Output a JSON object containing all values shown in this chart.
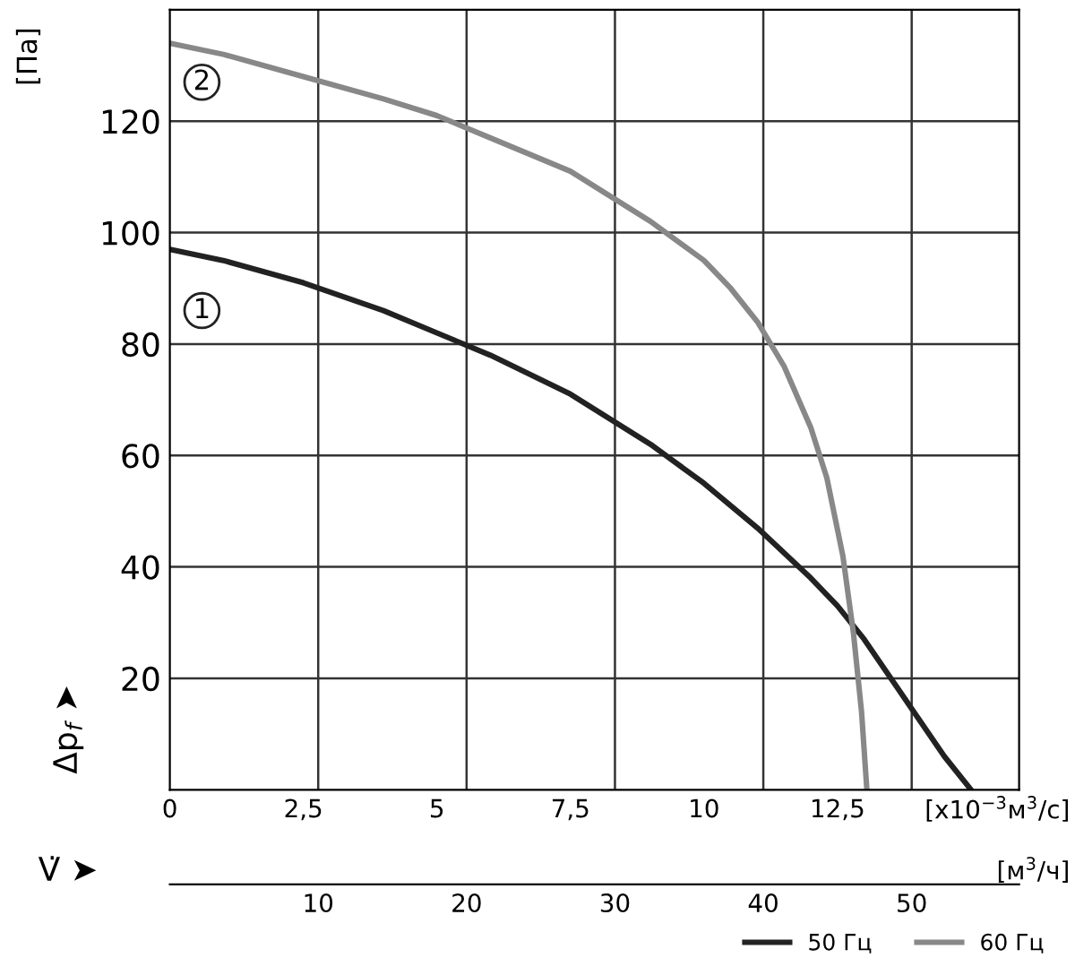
{
  "chart_data": {
    "type": "line",
    "xlabel": "[x10$^{−3}$м$^{3}$/с]",
    "ylabel": "[Па]",
    "x2label": "[м$^{3}$/ч]",
    "annotations": [
      "Δp$_{f}$ ➤",
      "V̇ ➤",
      {
        "text": "1",
        "x": 0.6,
        "y": 86
      },
      {
        "text": "2",
        "x": 0.6,
        "y": 127
      }
    ],
    "xlim": [
      0,
      15.9
    ],
    "ylim": [
      0,
      140
    ],
    "xticks": [
      0,
      {
        "value": 2.5,
        "label": "2,5"
      },
      5,
      {
        "value": 7.5,
        "label": "7,5"
      },
      10,
      {
        "value": 12.5,
        "label": "12,5"
      }
    ],
    "x2lim": [
      0,
      57.24
    ],
    "x2ticks": [
      10,
      20,
      30,
      40,
      50
    ],
    "yticks": [
      20,
      40,
      60,
      80,
      100,
      120
    ],
    "grid": true,
    "legend": "bottom right",
    "marker": "none",
    "line_style": "solid",
    "series": [
      {
        "name": "50 Гц",
        "color": "#222222",
        "x": [
          0,
          1,
          2.5,
          4,
          5,
          6,
          7.5,
          9,
          10,
          11,
          12,
          12.5,
          13,
          13.5,
          14,
          14.5,
          15.0
        ],
        "values": [
          97,
          95,
          91,
          86,
          82,
          78,
          71,
          62,
          55,
          47,
          38,
          33,
          27,
          20,
          13,
          6,
          0
        ]
      },
      {
        "name": "60 Гц",
        "color": "#888888",
        "x": [
          0,
          1,
          2.5,
          4,
          5,
          6,
          7.5,
          9,
          10,
          10.5,
          11,
          11.5,
          12,
          12.3,
          12.6,
          12.8,
          12.95,
          13.05
        ],
        "values": [
          134,
          132,
          128,
          124,
          121,
          117,
          111,
          102,
          95,
          90,
          84,
          76,
          65,
          56,
          42,
          28,
          14,
          0
        ]
      }
    ]
  }
}
